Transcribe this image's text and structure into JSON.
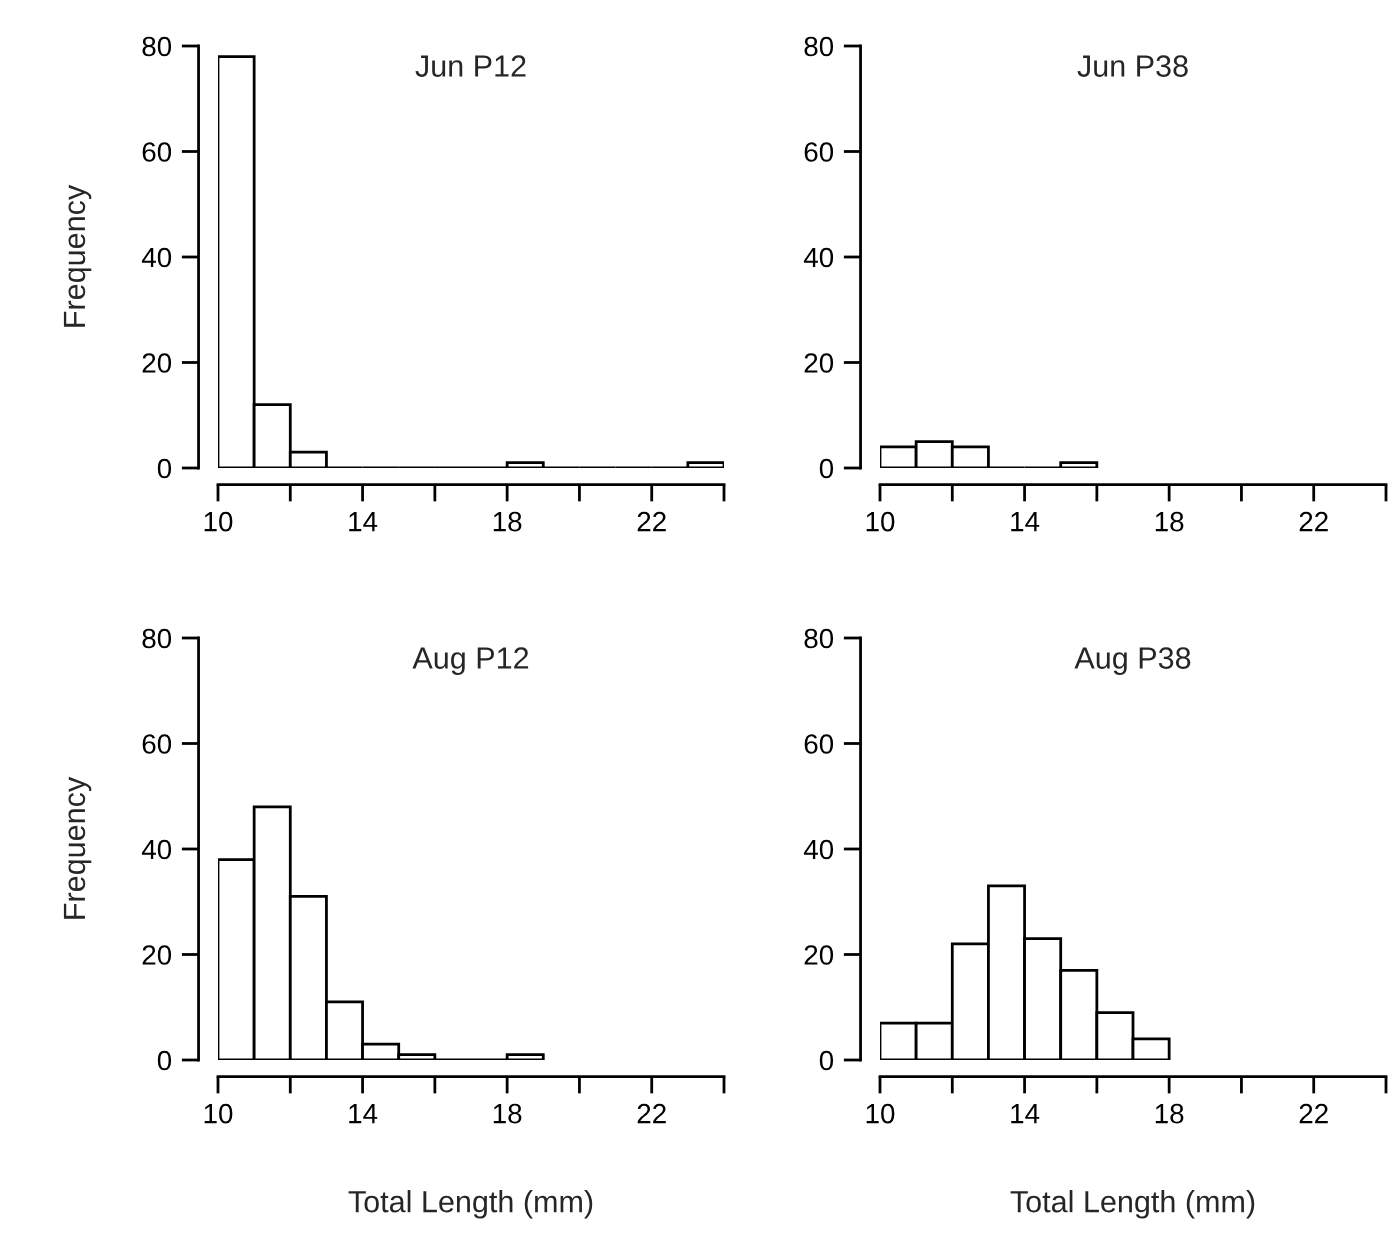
{
  "chart_data": [
    {
      "type": "histogram",
      "title": "Jun P12",
      "ylabel": "Frequency",
      "bins": [
        10,
        11,
        12,
        13,
        14,
        15,
        16,
        17,
        18,
        19,
        20,
        21,
        22,
        23,
        24
      ],
      "values": [
        78,
        12,
        3,
        0,
        0,
        0,
        0,
        0,
        1,
        0,
        0,
        0,
        0,
        1
      ],
      "xlim": [
        10,
        24
      ],
      "ylim": [
        0,
        80
      ],
      "xticks": [
        10,
        {
          "value": 12,
          "label": null
        },
        14,
        {
          "value": 16,
          "label": null
        },
        18,
        {
          "value": 20,
          "label": null
        },
        22,
        {
          "value": 24,
          "label": null
        }
      ],
      "yticks": [
        0,
        20,
        40,
        60,
        80
      ]
    },
    {
      "type": "histogram",
      "title": "Jun P38",
      "bins": [
        10,
        11,
        12,
        13,
        14,
        15,
        16
      ],
      "values": [
        4,
        5,
        4,
        0,
        0,
        1
      ],
      "xlim": [
        10,
        24
      ],
      "ylim": [
        0,
        80
      ],
      "xticks": [
        10,
        {
          "value": 12,
          "label": null
        },
        14,
        {
          "value": 16,
          "label": null
        },
        18,
        {
          "value": 20,
          "label": null
        },
        22,
        {
          "value": 24,
          "label": null
        }
      ],
      "yticks": [
        0,
        20,
        40,
        60,
        80
      ]
    },
    {
      "type": "histogram",
      "title": "Aug P12",
      "ylabel": "Frequency",
      "xlabel": "Total Length (mm)",
      "bins": [
        10,
        11,
        12,
        13,
        14,
        15,
        16,
        17,
        18,
        19
      ],
      "values": [
        38,
        48,
        31,
        11,
        3,
        1,
        0,
        0,
        1
      ],
      "xlim": [
        10,
        24
      ],
      "ylim": [
        0,
        80
      ],
      "xticks": [
        10,
        {
          "value": 12,
          "label": null
        },
        14,
        {
          "value": 16,
          "label": null
        },
        18,
        {
          "value": 20,
          "label": null
        },
        22,
        {
          "value": 24,
          "label": null
        }
      ],
      "yticks": [
        0,
        20,
        40,
        60,
        80
      ]
    },
    {
      "type": "histogram",
      "title": "Aug P38",
      "xlabel": "Total Length (mm)",
      "bins": [
        10,
        11,
        12,
        13,
        14,
        15,
        16,
        17,
        18
      ],
      "values": [
        7,
        7,
        22,
        33,
        23,
        17,
        9,
        4
      ],
      "xlim": [
        10,
        24
      ],
      "ylim": [
        0,
        80
      ],
      "xticks": [
        10,
        {
          "value": 12,
          "label": null
        },
        14,
        {
          "value": 16,
          "label": null
        },
        18,
        {
          "value": 20,
          "label": null
        },
        22,
        {
          "value": 24,
          "label": null
        }
      ],
      "yticks": [
        0,
        20,
        40,
        60,
        80
      ]
    }
  ]
}
